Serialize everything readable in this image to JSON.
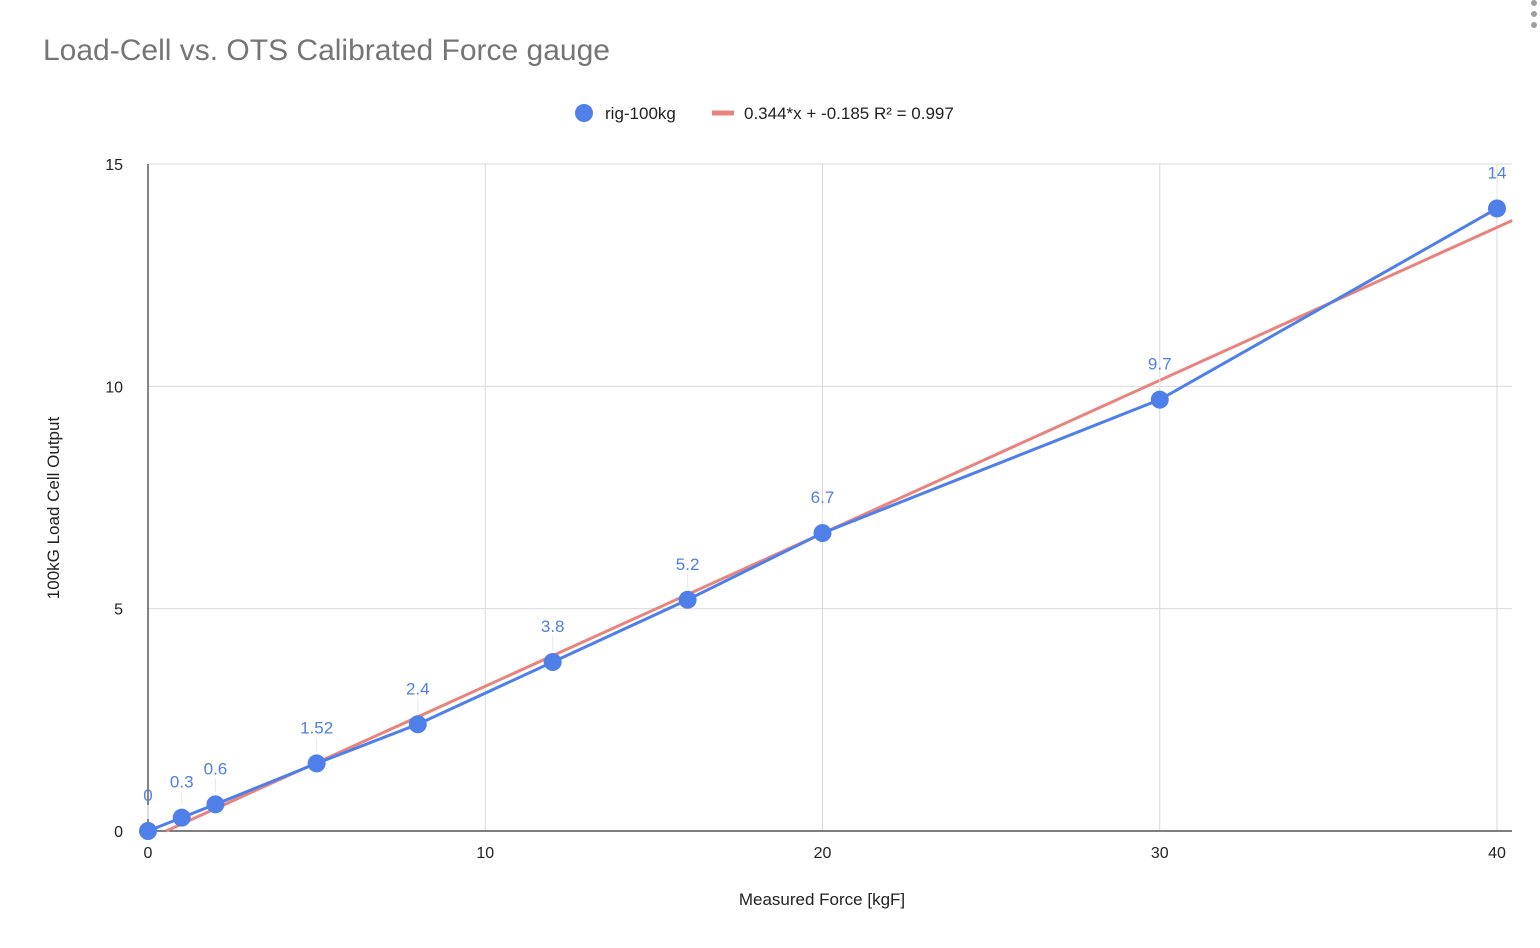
{
  "chart_data": {
    "type": "scatter",
    "title": "Load-Cell vs. OTS Calibrated Force gauge",
    "xlabel": "Measured Force [kgF]",
    "ylabel": "100kG Load Cell Output",
    "xlim": [
      0,
      40
    ],
    "ylim": [
      0,
      15
    ],
    "x_ticks": [
      0,
      10,
      20,
      30,
      40
    ],
    "y_ticks": [
      0,
      5,
      10,
      15
    ],
    "grid": true,
    "legend_position": "top",
    "series": [
      {
        "name": "rig-100kg",
        "color": "#4f7fe8",
        "marker": "circle",
        "connected": true,
        "x": [
          0,
          1,
          2,
          5,
          8,
          12,
          16,
          20,
          30,
          40
        ],
        "y": [
          0,
          0.3,
          0.6,
          1.52,
          2.4,
          3.8,
          5.2,
          6.7,
          9.7,
          14
        ],
        "labels": [
          "0",
          "0.3",
          "0.6",
          "1.52",
          "2.4",
          "3.8",
          "5.2",
          "6.7",
          "9.7",
          "14"
        ]
      }
    ],
    "trendline": {
      "name": "0.344*x + -0.185 R² = 0.997",
      "slope": 0.344,
      "intercept": -0.185,
      "color": "#e8837e"
    }
  },
  "ui": {
    "menu_icon": "more-vert-icon"
  }
}
